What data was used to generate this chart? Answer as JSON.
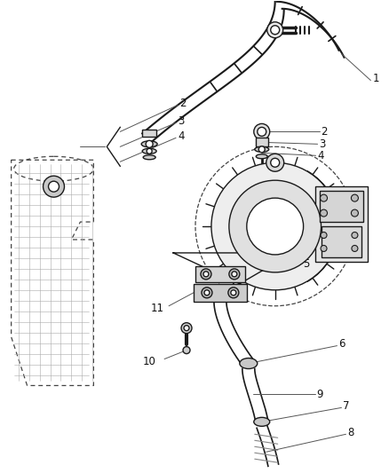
{
  "background_color": "#ffffff",
  "fig_width": 4.38,
  "fig_height": 5.33,
  "dpi": 100,
  "line_color": "#1a1a1a",
  "dashed_color": "#444444",
  "label_color": "#111111",
  "label_fontsize": 8.5,
  "leader_lw": 0.7,
  "part_lw": 1.0
}
